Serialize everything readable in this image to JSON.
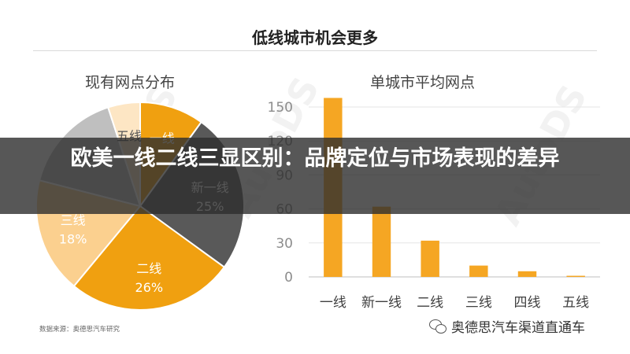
{
  "page": {
    "main_title": "低线城市机会更多",
    "source_note": "数据来源：奥德思汽车研究",
    "brand": "奥德思汽车渠道直通车",
    "overlay_headline": "欧美一线二线三显区别：品牌定位与市场表现的差异",
    "watermark": "AutoDS"
  },
  "colors": {
    "orange_dark": "#f0a010",
    "orange_mid": "#f7b84a",
    "orange_light": "#fbd08f",
    "orange_pale": "#fde6c4",
    "gray_dark": "#595959",
    "gray_mid": "#7f7f7f",
    "gray_light": "#bfbfbf",
    "bar": "#f5a623"
  },
  "chart_data": [
    {
      "type": "pie",
      "title": "现有网点分布",
      "slices": [
        {
          "label": "一线",
          "value": 10,
          "display": ""
        },
        {
          "label": "新一线",
          "value": 25,
          "display": "25%"
        },
        {
          "label": "二线",
          "value": 26,
          "display": "26%"
        },
        {
          "label": "三线",
          "value": 18,
          "display": "18%"
        },
        {
          "label": "四线",
          "value": 16,
          "display": ""
        },
        {
          "label": "五线",
          "value": 5,
          "display": ""
        }
      ]
    },
    {
      "type": "bar",
      "title": "单城市平均网点",
      "categories": [
        "一线",
        "新一线",
        "二线",
        "三线",
        "四线",
        "五线"
      ],
      "values": [
        158,
        62,
        32,
        10,
        5,
        1
      ],
      "ylim": [
        0,
        150
      ],
      "yticks": [
        0,
        30,
        60,
        90,
        120,
        150
      ]
    }
  ]
}
